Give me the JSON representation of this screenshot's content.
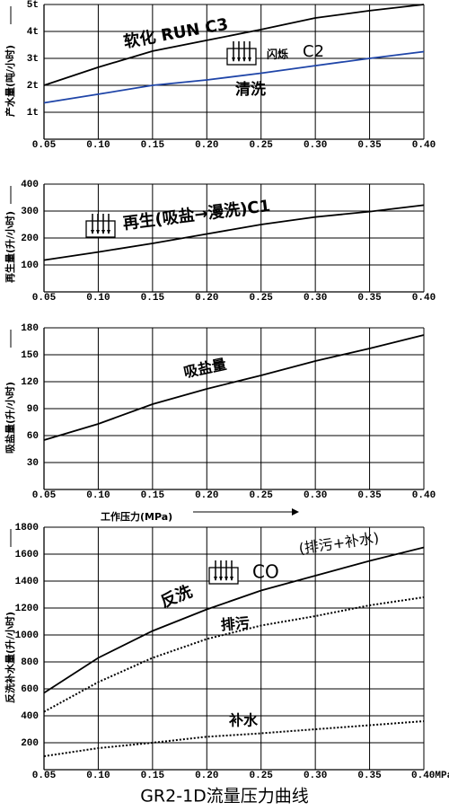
{
  "title": "GR2-1D流量压力曲线",
  "chart_data": [
    {
      "type": "line",
      "ylabel": "产水量(吨/小时)",
      "x": [
        0.05,
        0.1,
        0.15,
        0.2,
        0.25,
        0.3,
        0.35,
        0.4
      ],
      "xlim": [
        0.05,
        0.4
      ],
      "xticks": [
        0.05,
        {
          "value": 0.1,
          "label": "0.10"
        },
        0.15,
        {
          "value": 0.2,
          "label": "0.20"
        },
        0.25,
        {
          "value": 0.3,
          "label": "0.30"
        },
        0.35,
        {
          "value": 0.4,
          "label": "0.40"
        }
      ],
      "ylim": [
        0,
        5
      ],
      "yticks": [
        {
          "value": 1,
          "label": "1t"
        },
        {
          "value": 2,
          "label": "2t"
        },
        {
          "value": 3,
          "label": "3t"
        },
        {
          "value": 4,
          "label": "4t"
        },
        {
          "value": 5,
          "label": "5t"
        }
      ],
      "grid": true,
      "series": [
        {
          "name": "软化 RUN C3",
          "color": "#000000",
          "style": "solid",
          "values": [
            2.0,
            2.67,
            3.27,
            3.67,
            4.07,
            4.5,
            4.77,
            5.0
          ]
        },
        {
          "name": "清洗",
          "color": "#1f45a8",
          "style": "solid",
          "values": [
            1.35,
            1.67,
            2.0,
            2.2,
            2.45,
            2.73,
            3.0,
            3.25
          ]
        }
      ],
      "annotations": [
        {
          "text": "闪烁",
          "color": "#e00000"
        },
        {
          "text": "C2",
          "color": "#000000"
        }
      ]
    },
    {
      "type": "line",
      "ylabel": "再生量(升/小时)",
      "x": [
        0.05,
        0.1,
        0.15,
        0.2,
        0.25,
        0.3,
        0.35,
        0.4
      ],
      "xlim": [
        0.05,
        0.4
      ],
      "xticks": [
        0.05,
        {
          "value": 0.1,
          "label": "0.10"
        },
        0.15,
        {
          "value": 0.2,
          "label": "0.20"
        },
        0.25,
        {
          "value": 0.3,
          "label": "0.30"
        },
        0.35,
        {
          "value": 0.4,
          "label": "0.40"
        }
      ],
      "ylim": [
        0,
        400
      ],
      "yticks": [
        100,
        200,
        300,
        400
      ],
      "grid": true,
      "series": [
        {
          "name": "再生(吸盐→漫洗)C1",
          "color": "#000000",
          "style": "solid",
          "values": [
            118,
            148,
            180,
            215,
            250,
            278,
            298,
            322
          ]
        }
      ],
      "annotations": []
    },
    {
      "type": "line",
      "ylabel": "吸盐量(升/小时)",
      "xlabel": "工作压力(MPa)",
      "x": [
        0.05,
        0.1,
        0.15,
        0.2,
        0.25,
        0.3,
        0.35,
        0.4
      ],
      "xlim": [
        0.05,
        0.4
      ],
      "xticks": [
        0.05,
        {
          "value": 0.1,
          "label": "0.10"
        },
        0.15,
        {
          "value": 0.2,
          "label": "0.20"
        },
        0.25,
        {
          "value": 0.3,
          "label": "0.30"
        },
        0.35,
        {
          "value": 0.4,
          "label": "0.40"
        }
      ],
      "ylim": [
        0,
        180
      ],
      "yticks": [
        30,
        60,
        90,
        120,
        150,
        180
      ],
      "grid": true,
      "series": [
        {
          "name": "吸盐量",
          "color": "#000000",
          "style": "solid",
          "values": [
            55,
            73,
            95,
            112,
            127,
            143,
            157,
            172
          ]
        }
      ],
      "annotations": []
    },
    {
      "type": "line",
      "ylabel": "反洗补水量(升/小时)",
      "x": [
        0.05,
        0.1,
        0.15,
        0.2,
        0.25,
        0.3,
        0.35,
        0.4
      ],
      "xlim": [
        0.05,
        0.4
      ],
      "xticks": [
        0.05,
        {
          "value": 0.1,
          "label": "0.10"
        },
        0.15,
        {
          "value": 0.2,
          "label": "0.20"
        },
        0.25,
        {
          "value": 0.3,
          "label": "0.30"
        },
        0.35,
        {
          "value": 0.4,
          "label": "0.40MPa"
        }
      ],
      "ylim": [
        0,
        1800
      ],
      "yticks": [
        200,
        400,
        600,
        800,
        1000,
        1200,
        1400,
        1600,
        1800
      ],
      "grid": true,
      "series": [
        {
          "name": "反洗",
          "color": "#000000",
          "style": "solid",
          "values": [
            570,
            830,
            1030,
            1190,
            1330,
            1440,
            1550,
            1650
          ]
        },
        {
          "name": "排污",
          "color": "#000000",
          "style": "dotted",
          "values": [
            430,
            650,
            830,
            970,
            1070,
            1140,
            1220,
            1280
          ]
        },
        {
          "name": "补水",
          "color": "#000000",
          "style": "dotted",
          "values": [
            100,
            160,
            200,
            245,
            270,
            300,
            330,
            360
          ]
        }
      ],
      "annotations": [
        {
          "text": "CO",
          "color": "#e00000"
        },
        {
          "text": "(排污+补水)",
          "color": "#000000"
        }
      ]
    }
  ]
}
